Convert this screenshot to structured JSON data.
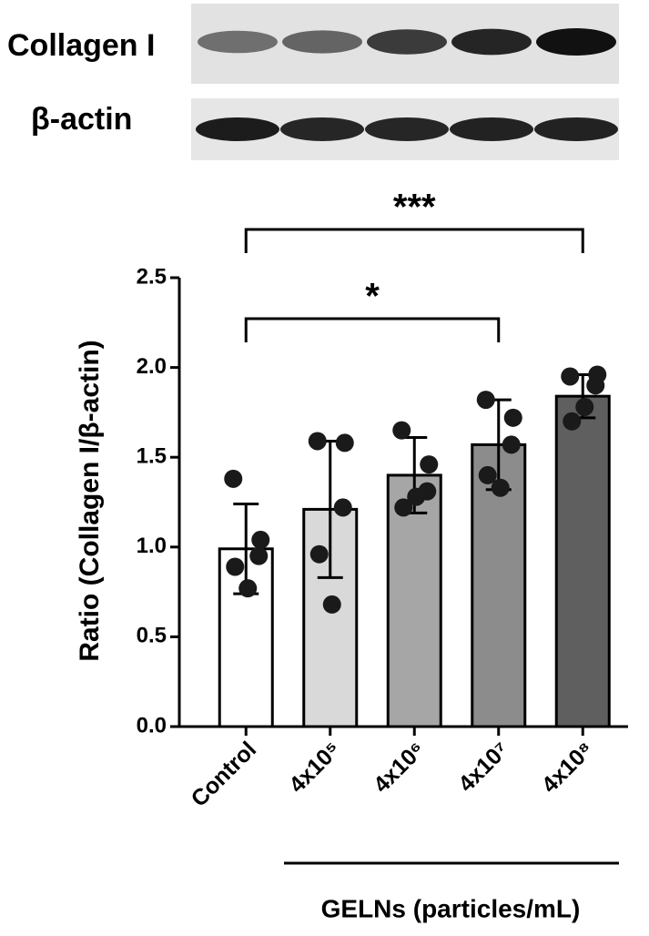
{
  "chart_data": {
    "type": "bar",
    "ylabel": "Ratio (Collagen I/β-actin)",
    "xlabel": "GELNs (particles/mL)",
    "categories": [
      "Control",
      "4x10⁵",
      "4x10⁶",
      "4x10⁷",
      "4x10⁸"
    ],
    "values": [
      0.99,
      1.21,
      1.4,
      1.57,
      1.84
    ],
    "errors": [
      0.25,
      0.38,
      0.21,
      0.25,
      0.12
    ],
    "points": [
      [
        1.38,
        1.04,
        0.95,
        0.89,
        0.77
      ],
      [
        1.59,
        1.58,
        1.22,
        0.96,
        0.68
      ],
      [
        1.65,
        1.46,
        1.31,
        1.22,
        1.28
      ],
      [
        1.82,
        1.72,
        1.57,
        1.4,
        1.33
      ],
      [
        1.95,
        1.96,
        1.9,
        1.7,
        1.78
      ]
    ],
    "colors": [
      "#ffffff",
      "#d9d9d9",
      "#a6a6a6",
      "#8c8c8c",
      "#5f5f5f"
    ],
    "ylim": [
      0,
      2.5
    ],
    "yticks": [
      {
        "value": 0,
        "label": "0.0"
      },
      0.5,
      {
        "value": 1,
        "label": "1.0"
      },
      1.5,
      {
        "value": 2,
        "label": "2.0"
      },
      2.5
    ],
    "annotations": [
      {
        "text": "***",
        "pair": [
          "Control",
          "4x10⁸"
        ]
      },
      {
        "text": "*",
        "pair": [
          "Control",
          "4x10⁷"
        ]
      }
    ],
    "blot": {
      "rows": [
        "Collagen I",
        "β-actin"
      ]
    }
  }
}
